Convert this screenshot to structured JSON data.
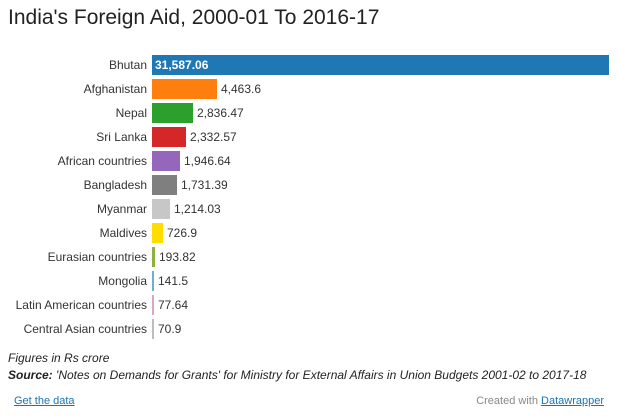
{
  "chart_data": {
    "type": "bar",
    "orientation": "horizontal",
    "title": "India's Foreign Aid, 2000-01 To 2016-17",
    "categories": [
      "Bhutan",
      "Afghanistan",
      "Nepal",
      "Sri Lanka",
      "African countries",
      "Bangladesh",
      "Myanmar",
      "Maldives",
      "Eurasian countries",
      "Mongolia",
      "Latin American countries",
      "Central Asian countries"
    ],
    "values": [
      31587.06,
      4463.6,
      2836.47,
      2332.57,
      1946.64,
      1731.39,
      1214.03,
      726.9,
      193.82,
      141.5,
      77.64,
      70.9
    ],
    "value_labels": [
      "31,587.06",
      "4,463.6",
      "2,836.47",
      "2,332.57",
      "1,946.64",
      "1,731.39",
      "1,214.03",
      "726.9",
      "193.82",
      "141.5",
      "77.64",
      "70.9"
    ],
    "colors": [
      "#1f77b4",
      "#ff7f0e",
      "#2ca02c",
      "#d62728",
      "#9467bd",
      "#7f7f7f",
      "#c7c7c7",
      "#ffdd00",
      "#8fb03a",
      "#6baed6",
      "#d9a6c6",
      "#bdbdbd"
    ],
    "xlim": [
      0,
      31587.06
    ],
    "grid": false
  },
  "notes": {
    "units": "Figures in Rs crore",
    "source_label": "Source:",
    "source_text": " 'Notes on Demands for Grants' for Ministry for External Affairs in Union Budgets 2001-02 to 2017-18"
  },
  "footer": {
    "get_data": "Get the data",
    "created_with": "Created with ",
    "datawrapper": "Datawrapper"
  }
}
